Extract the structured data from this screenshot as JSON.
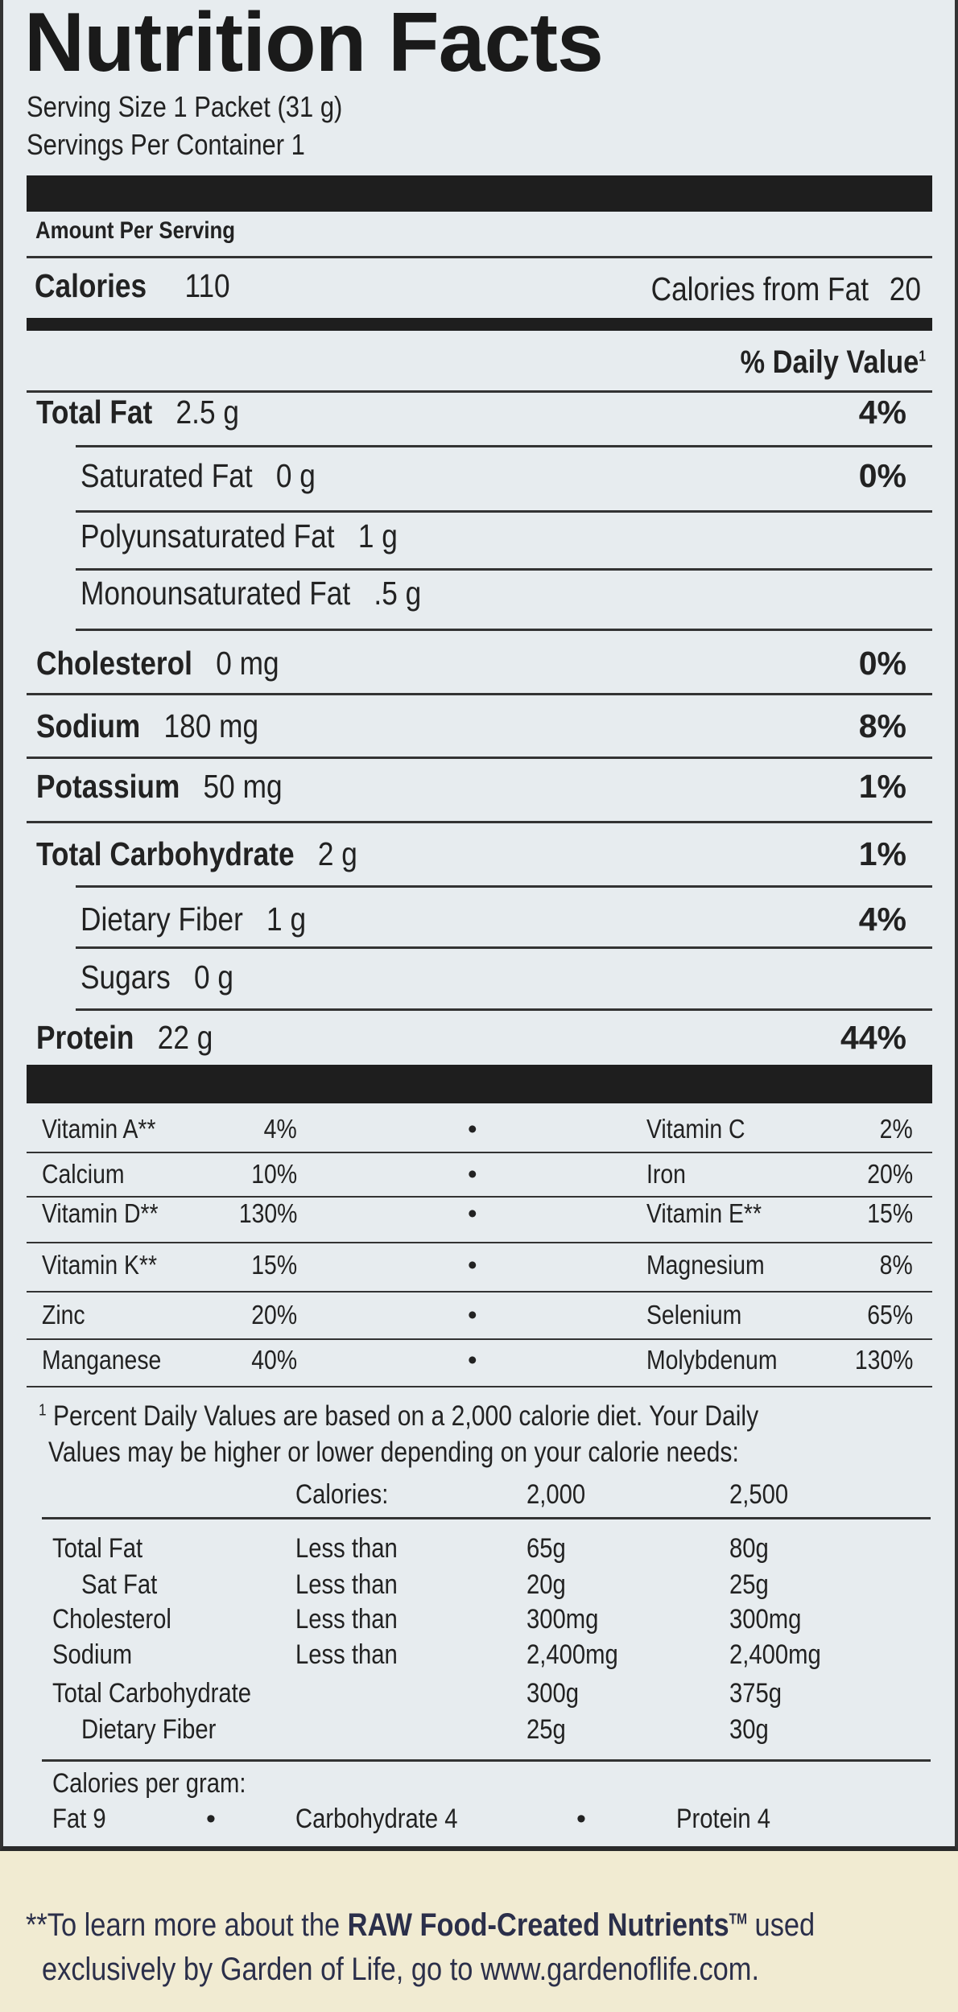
{
  "title": "Nutrition Facts",
  "serving_size": "Serving Size 1 Packet (31 g)",
  "servings_per_container": "Servings Per Container 1",
  "amount_per_serving": "Amount Per Serving",
  "calories": {
    "label": "Calories",
    "value": "110",
    "from_fat_label": "Calories from Fat",
    "from_fat_value": "20"
  },
  "daily_value_header": "% Daily Value",
  "daily_value_sup": "1",
  "nutrients": [
    {
      "name": "Total Fat",
      "amount": "2.5 g",
      "dv": "4%",
      "bold": true,
      "indent": false
    },
    {
      "name": "Saturated Fat",
      "amount": "0 g",
      "dv": "0%",
      "bold": false,
      "indent": true
    },
    {
      "name": "Polyunsaturated Fat",
      "amount": "1 g",
      "dv": "",
      "bold": false,
      "indent": true
    },
    {
      "name": "Monounsaturated Fat",
      "amount": ".5 g",
      "dv": "",
      "bold": false,
      "indent": true
    },
    {
      "name": "Cholesterol",
      "amount": "0 mg",
      "dv": "0%",
      "bold": true,
      "indent": false
    },
    {
      "name": "Sodium",
      "amount": "180 mg",
      "dv": "8%",
      "bold": true,
      "indent": false
    },
    {
      "name": "Potassium",
      "amount": "50 mg",
      "dv": "1%",
      "bold": true,
      "indent": false
    },
    {
      "name": "Total Carbohydrate",
      "amount": "2 g",
      "dv": "1%",
      "bold": true,
      "indent": false
    },
    {
      "name": "Dietary Fiber",
      "amount": "1 g",
      "dv": "4%",
      "bold": false,
      "indent": true
    },
    {
      "name": "Sugars",
      "amount": "0 g",
      "dv": "",
      "bold": false,
      "indent": true
    },
    {
      "name": "Protein",
      "amount": "22 g",
      "dv": "44%",
      "bold": true,
      "indent": false
    }
  ],
  "vitamins": [
    [
      {
        "name": "Vitamin A**",
        "dv": "4%"
      },
      {
        "name": "Vitamin C",
        "dv": "2%"
      }
    ],
    [
      {
        "name": "Calcium",
        "dv": "10%"
      },
      {
        "name": "Iron",
        "dv": "20%"
      }
    ],
    [
      {
        "name": "Vitamin D**",
        "dv": "130%"
      },
      {
        "name": "Vitamin E**",
        "dv": "15%"
      }
    ],
    [
      {
        "name": "Vitamin K**",
        "dv": "15%"
      },
      {
        "name": "Magnesium",
        "dv": "8%"
      }
    ],
    [
      {
        "name": "Zinc",
        "dv": "20%"
      },
      {
        "name": "Selenium",
        "dv": "65%"
      }
    ],
    [
      {
        "name": "Manganese",
        "dv": "40%"
      },
      {
        "name": "Molybdenum",
        "dv": "130%"
      }
    ]
  ],
  "separator": "•",
  "footnote": {
    "sup": "1",
    "line1": "Percent Daily Values are based on a 2,000 calorie diet. Your Daily",
    "line2": "Values may be higher or lower depending on your calorie needs:"
  },
  "dv_table": {
    "header": [
      "",
      "Calories:",
      "2,000",
      "2,500"
    ],
    "rows": [
      [
        "Total Fat",
        "Less than",
        "65g",
        "80g"
      ],
      [
        "Sat Fat",
        "Less than",
        "20g",
        "25g"
      ],
      [
        "Cholesterol",
        "Less than",
        "300mg",
        "300mg"
      ],
      [
        "Sodium",
        "Less than",
        "2,400mg",
        "2,400mg"
      ],
      [
        "Total Carbohydrate",
        "",
        "300g",
        "375g"
      ],
      [
        "Dietary Fiber",
        "",
        "25g",
        "30g"
      ]
    ]
  },
  "calories_per_gram": {
    "label": "Calories per gram:",
    "fat": "Fat 9",
    "carb": "Carbohydrate 4",
    "protein": "Protein 4"
  },
  "footer": {
    "prefix": "**To learn more about the ",
    "brand": "RAW Food-Created Nutrients",
    "tm": "TM",
    "suffix": " used",
    "line2": "exclusively by Garden of Life, go to www.gardenoflife.com."
  },
  "colors": {
    "label_bg": "#e7ecef",
    "footer_bg": "#f1ebd2",
    "ink": "#222222",
    "brand_text": "#2b2f4a"
  }
}
